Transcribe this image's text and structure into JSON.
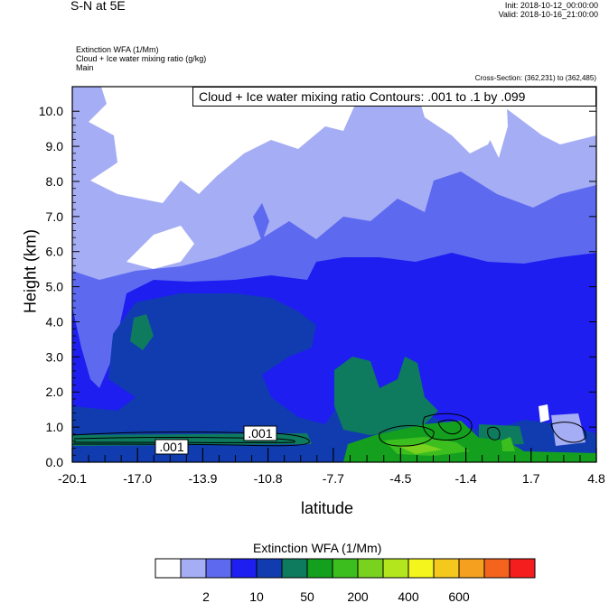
{
  "header": {
    "title": "S-N at 5E",
    "init": "Init: 2018-10-12_00:00:00",
    "valid": "Valid: 2018-10-16_21:00:00",
    "field1": "Extinction WFA   (1/Mm)",
    "field2": "Cloud + Ice water mixing ratio   (g/kg)",
    "field3": "Main",
    "cross_section": "Cross-Section: (362,231) to (362,485)"
  },
  "contour_legend": "Cloud + Ice water mixing ratio Contours: .001 to .1 by .099",
  "chart_data": {
    "type": "heatmap",
    "xlabel": "latitude",
    "ylabel": "Height (km)",
    "x_ticks": [
      "-20.1",
      "-17.0",
      "-13.9",
      "-10.8",
      "-7.7",
      "-4.5",
      "-1.4",
      "1.7",
      "4.8"
    ],
    "y_ticks": [
      "0.0",
      "1.0",
      "2.0",
      "3.0",
      "4.0",
      "5.0",
      "6.0",
      "7.0",
      "8.0",
      "9.0",
      "10.0"
    ],
    "xlim": [
      -20.1,
      4.8
    ],
    "ylim": [
      0,
      10.7
    ],
    "contour_labels": [
      ".001",
      ".001"
    ],
    "colorbar": {
      "title": "Extinction WFA  (1/Mm)",
      "colors": [
        "#ffffff",
        "#a5adf5",
        "#5d6af0",
        "#1e1ef0",
        "#103cb0",
        "#0e7a5e",
        "#14a01e",
        "#3cbe1e",
        "#78d21e",
        "#b4e61e",
        "#f5f51e",
        "#f5c81e",
        "#f5a01e",
        "#f5641e",
        "#f51e1e"
      ],
      "tick_labels": [
        "2",
        "10",
        "50",
        "200",
        "400",
        "600"
      ]
    }
  }
}
